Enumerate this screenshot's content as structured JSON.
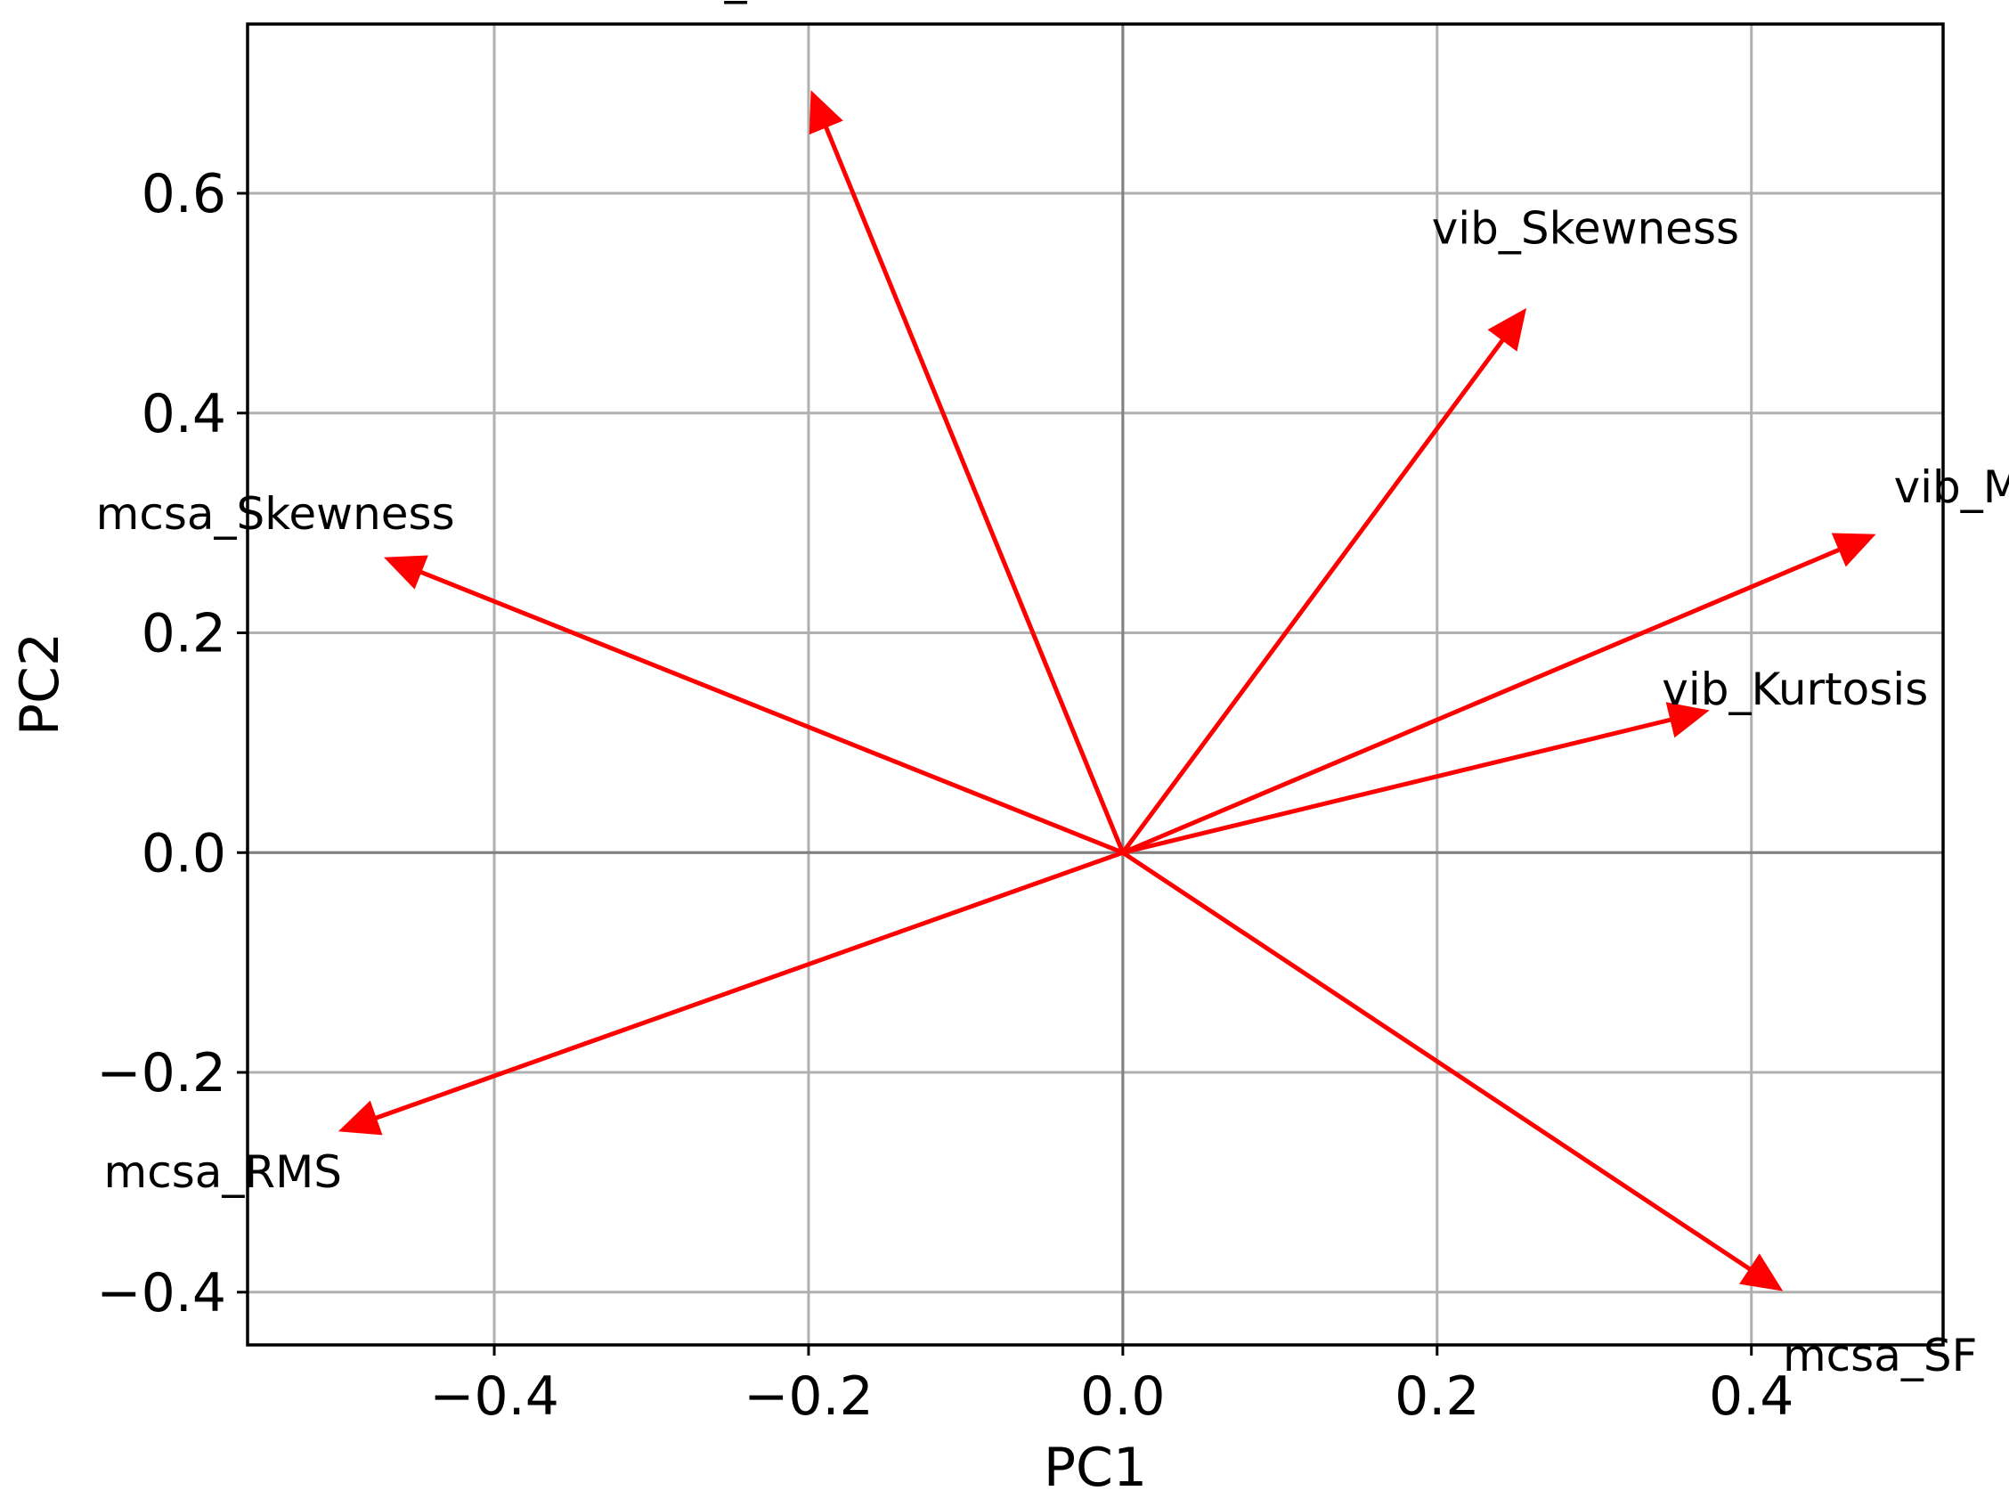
{
  "chart_data": {
    "type": "biplot",
    "title": "",
    "xlabel": "PC1",
    "ylabel": "PC2",
    "xlim": [
      -0.557,
      0.522
    ],
    "ylim": [
      -0.448,
      0.754
    ],
    "grid": true,
    "zero_lines": true,
    "arrow_color": "#ff0000",
    "xticks": [
      {
        "value": -0.4,
        "label": "−0.4"
      },
      {
        "value": -0.2,
        "label": "−0.2"
      },
      {
        "value": 0.0,
        "label": "0.0"
      },
      {
        "value": 0.2,
        "label": "0.2"
      },
      {
        "value": 0.4,
        "label": "0.4"
      }
    ],
    "yticks": [
      {
        "value": -0.4,
        "label": "−0.4"
      },
      {
        "value": -0.2,
        "label": "−0.2"
      },
      {
        "value": 0.0,
        "label": "0.0"
      },
      {
        "value": 0.2,
        "label": "0.2"
      },
      {
        "value": 0.4,
        "label": "0.4"
      },
      {
        "value": 0.6,
        "label": "0.6"
      }
    ],
    "vectors": [
      {
        "name": "mcsa_Kurtosis",
        "x": -0.198,
        "y": 0.692
      },
      {
        "name": "vib_Skewness",
        "x": 0.256,
        "y": 0.494
      },
      {
        "name": "mcsa_Skewness",
        "x": -0.469,
        "y": 0.268
      },
      {
        "name": "vib_MAV",
        "x": 0.478,
        "y": 0.289
      },
      {
        "name": "vib_Kurtosis",
        "x": 0.372,
        "y": 0.129
      },
      {
        "name": "mcsa_RMS",
        "x": -0.498,
        "y": -0.253
      },
      {
        "name": "mcsa_SF",
        "x": 0.419,
        "y": -0.398
      }
    ]
  }
}
